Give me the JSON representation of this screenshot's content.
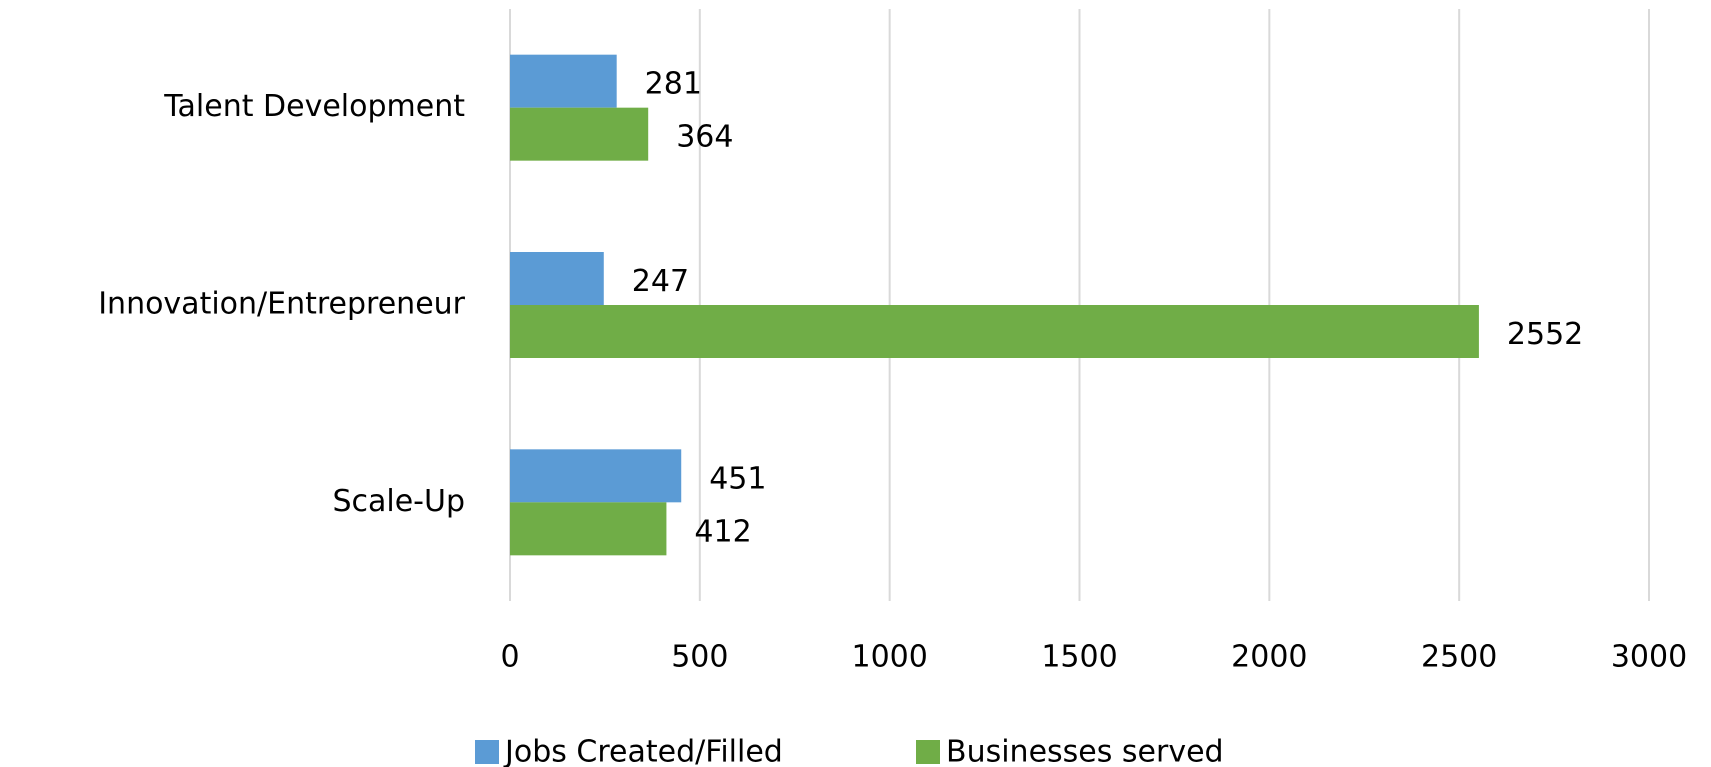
{
  "chart_data": {
    "type": "bar",
    "orientation": "horizontal",
    "categories": [
      "Talent Development",
      "Innovation/Entrepreneur",
      "Scale-Up"
    ],
    "series": [
      {
        "name": "Jobs Created/Filled",
        "color": "#5b9bd5",
        "values": [
          281,
          247,
          451
        ]
      },
      {
        "name": "Businesses served",
        "color": "#70ad47",
        "values": [
          364,
          2552,
          412
        ]
      }
    ],
    "xlim": [
      0,
      3000
    ],
    "xticks": [
      0,
      500,
      1000,
      1500,
      2000,
      2500,
      3000
    ],
    "grid": true,
    "legend": "bottom"
  }
}
